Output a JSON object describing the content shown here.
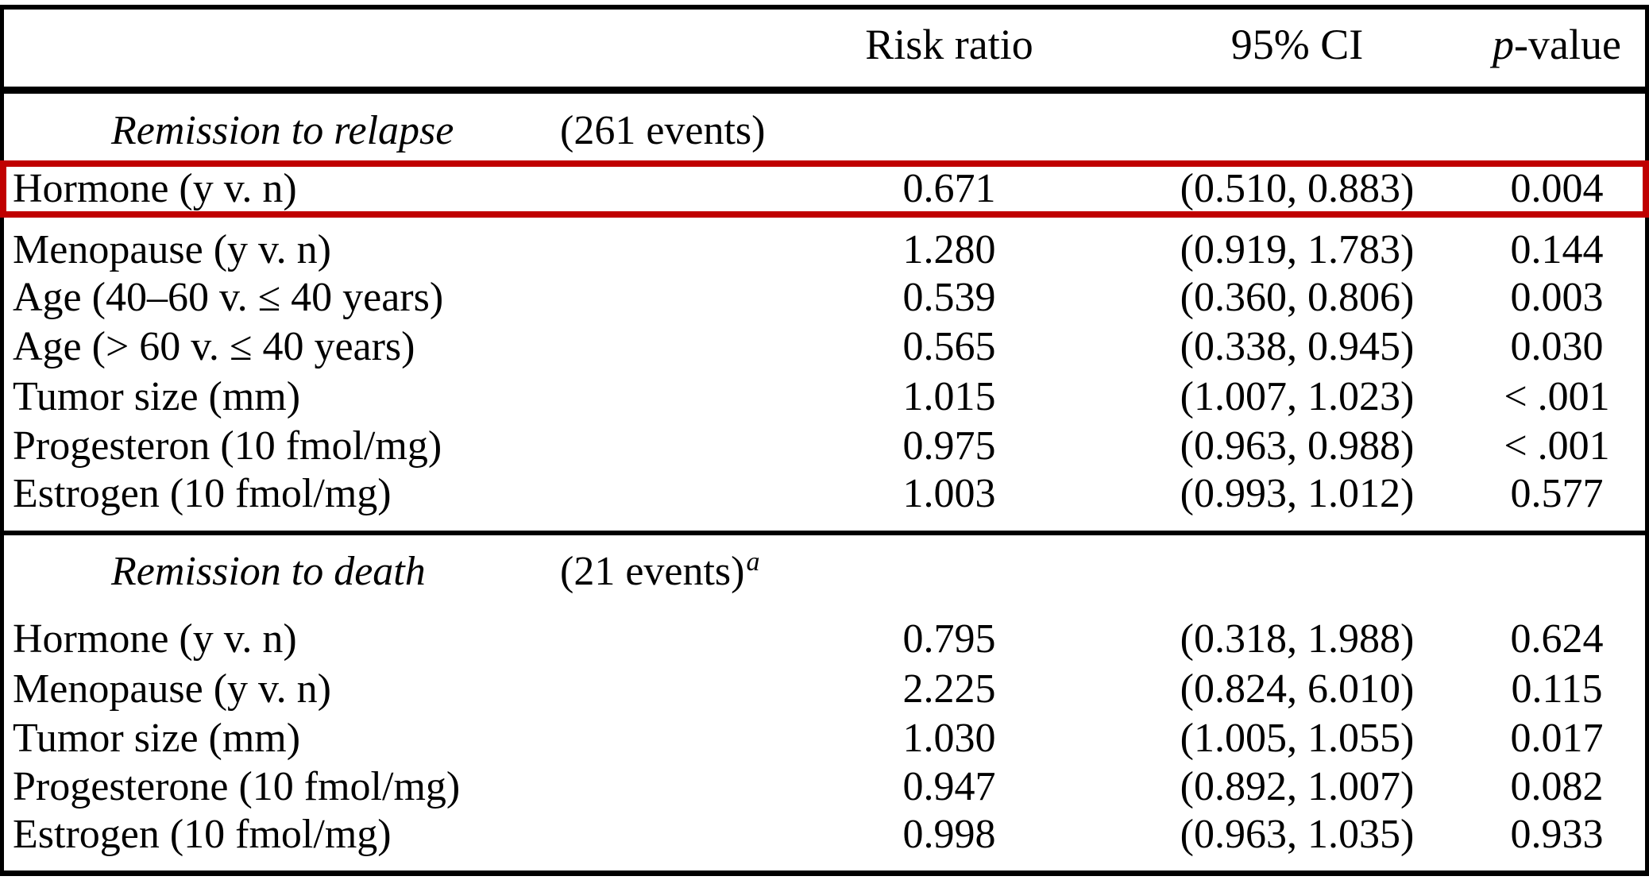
{
  "table": {
    "columns": {
      "label": "",
      "risk_ratio": "Risk ratio",
      "ci": "95% CI",
      "p_italic": "p",
      "p_rest": "-value"
    },
    "sections": [
      {
        "title": "Remission to relapse",
        "events": "(261 events)",
        "events_sup": "",
        "rows": [
          {
            "label": "Hormone (y v. n)",
            "risk_ratio": "0.671",
            "ci": "(0.510, 0.883)",
            "p": "0.004",
            "highlighted": true
          },
          {
            "label": "Menopause (y v. n)",
            "risk_ratio": "1.280",
            "ci": "(0.919, 1.783)",
            "p": "0.144",
            "highlighted": false
          },
          {
            "label": "Age (40–60 v. ≤ 40 years)",
            "risk_ratio": "0.539",
            "ci": "(0.360, 0.806)",
            "p": "0.003",
            "highlighted": false
          },
          {
            "label": "Age (> 60 v. ≤ 40 years)",
            "risk_ratio": "0.565",
            "ci": "(0.338, 0.945)",
            "p": "0.030",
            "highlighted": false
          },
          {
            "label": "Tumor size (mm)",
            "risk_ratio": "1.015",
            "ci": "(1.007, 1.023)",
            "p": "< .001",
            "highlighted": false
          },
          {
            "label": "Progesteron (10 fmol/mg)",
            "risk_ratio": "0.975",
            "ci": "(0.963, 0.988)",
            "p": "< .001",
            "highlighted": false
          },
          {
            "label": "Estrogen (10 fmol/mg)",
            "risk_ratio": "1.003",
            "ci": "(0.993, 1.012)",
            "p": "0.577",
            "highlighted": false
          }
        ]
      },
      {
        "title": "Remission to death",
        "events": "(21 events)",
        "events_sup": "a",
        "rows": [
          {
            "label": "Hormone (y v. n)",
            "risk_ratio": "0.795",
            "ci": "(0.318, 1.988)",
            "p": "0.624",
            "highlighted": false
          },
          {
            "label": "Menopause (y v. n)",
            "risk_ratio": "2.225",
            "ci": "(0.824, 6.010)",
            "p": "0.115",
            "highlighted": false
          },
          {
            "label": "Tumor size (mm)",
            "risk_ratio": "1.030",
            "ci": "(1.005, 1.055)",
            "p": "0.017",
            "highlighted": false
          },
          {
            "label": "Progesterone (10 fmol/mg)",
            "risk_ratio": "0.947",
            "ci": "(0.892, 1.007)",
            "p": "0.082",
            "highlighted": false
          },
          {
            "label": "Estrogen (10 fmol/mg)",
            "risk_ratio": "0.998",
            "ci": "(0.963, 1.035)",
            "p": "0.933",
            "highlighted": false
          }
        ]
      }
    ],
    "colors": {
      "highlight_box": "#c00000",
      "rule": "#000000",
      "text": "#000000",
      "background": "#ffffff"
    }
  }
}
